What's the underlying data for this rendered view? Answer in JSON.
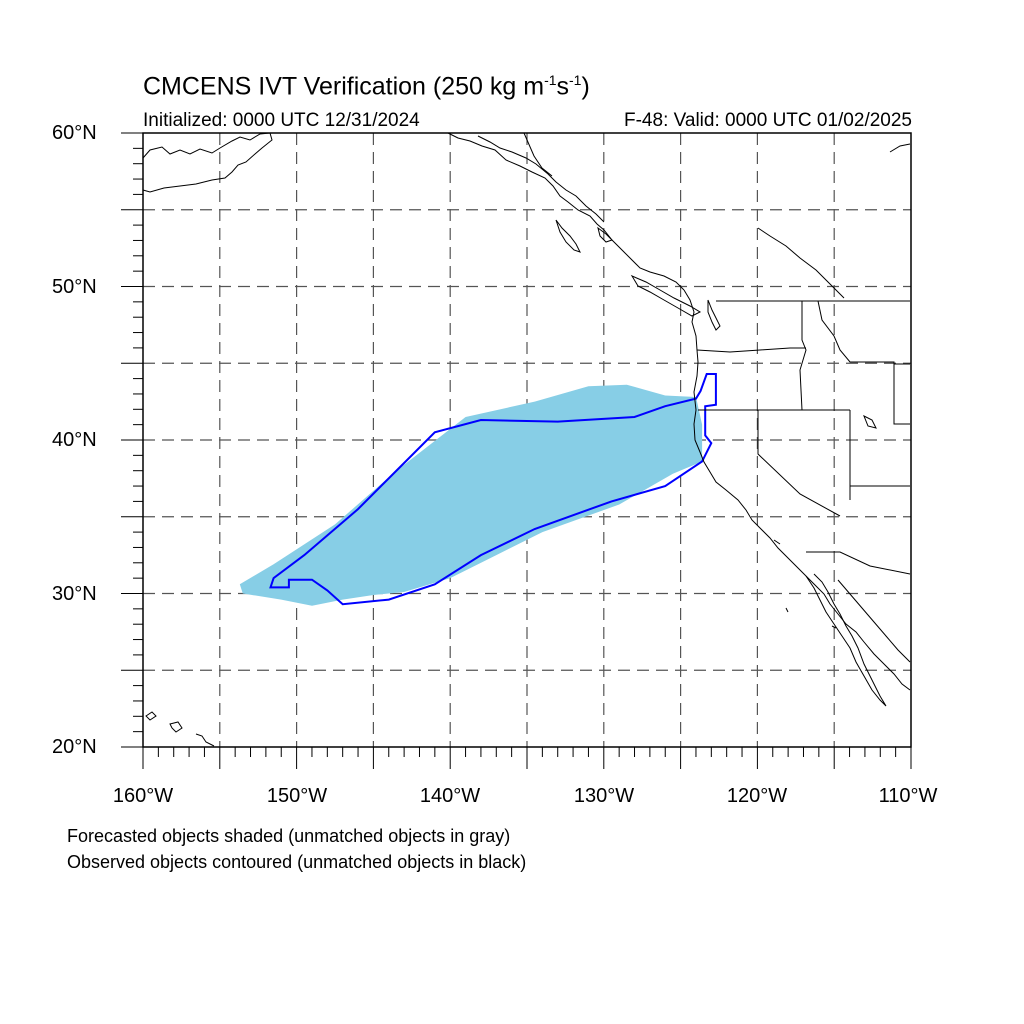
{
  "title": {
    "main": "CMCENS IVT Verification (250 kg m",
    "exp1": "-1",
    "mid": "s",
    "exp2": "-1",
    "end": ")"
  },
  "subtitle": {
    "initialized": "Initialized: 0000 UTC 12/31/2024",
    "valid": "F-48: Valid: 0000 UTC 01/02/2025"
  },
  "axes": {
    "lat_labels": [
      "60°N",
      "50°N",
      "40°N",
      "30°N",
      "20°N"
    ],
    "lon_labels": [
      "160°W",
      "150°W",
      "140°W",
      "130°W",
      "120°W",
      "110°W"
    ],
    "lat_range": [
      20,
      60
    ],
    "lon_range": [
      -160,
      -110
    ],
    "grid_interval_deg": 5,
    "grid_style": "dashed gray"
  },
  "legend_notes": {
    "line1": "Forecasted objects shaded (unmatched objects in gray)",
    "line2": "Observed objects contoured (unmatched objects in black)"
  },
  "colors": {
    "forecast_shade": "#87CEE6",
    "observed_contour": "#0000FF",
    "coastline": "#000000",
    "grid": "#555555"
  },
  "objects": {
    "forecast_matched": {
      "color": "forecast shade",
      "outline_lonlat": [
        [
          -153.7,
          30.6
        ],
        [
          -151.5,
          31.9
        ],
        [
          -147.5,
          34.5
        ],
        [
          -143.5,
          38.0
        ],
        [
          -139.0,
          41.5
        ],
        [
          -134.5,
          42.5
        ],
        [
          -131.0,
          43.5
        ],
        [
          -128.5,
          43.6
        ],
        [
          -126.0,
          42.9
        ],
        [
          -124.0,
          42.8
        ],
        [
          -123.6,
          41.0
        ],
        [
          -123.6,
          38.6
        ],
        [
          -125.5,
          37.8
        ],
        [
          -129.0,
          35.8
        ],
        [
          -134.0,
          34.0
        ],
        [
          -137.0,
          32.5
        ],
        [
          -140.0,
          31.0
        ],
        [
          -143.0,
          30.1
        ],
        [
          -145.0,
          29.9
        ],
        [
          -147.0,
          29.6
        ],
        [
          -149.0,
          29.2
        ],
        [
          -151.0,
          29.6
        ],
        [
          -153.5,
          30.0
        ]
      ]
    },
    "observed_matched": {
      "color": "observed contour",
      "outline_lonlat": [
        [
          -151.7,
          30.4
        ],
        [
          -151.5,
          31.0
        ],
        [
          -149.5,
          32.5
        ],
        [
          -146.0,
          35.5
        ],
        [
          -143.0,
          38.5
        ],
        [
          -141.0,
          40.5
        ],
        [
          -138.0,
          41.3
        ],
        [
          -133.0,
          41.2
        ],
        [
          -128.0,
          41.5
        ],
        [
          -126.0,
          42.2
        ],
        [
          -124.0,
          42.7
        ],
        [
          -123.7,
          43.2
        ],
        [
          -123.3,
          44.3
        ],
        [
          -122.7,
          44.3
        ],
        [
          -122.7,
          42.3
        ],
        [
          -123.4,
          42.2
        ],
        [
          -123.4,
          40.3
        ],
        [
          -123.0,
          39.8
        ],
        [
          -123.6,
          38.6
        ],
        [
          -126.0,
          37.0
        ],
        [
          -129.5,
          36.0
        ],
        [
          -134.5,
          34.2
        ],
        [
          -138.0,
          32.5
        ],
        [
          -141.0,
          30.6
        ],
        [
          -144.0,
          29.6
        ],
        [
          -147.0,
          29.3
        ],
        [
          -148.0,
          30.2
        ],
        [
          -149.0,
          30.9
        ],
        [
          -150.5,
          30.9
        ],
        [
          -150.5,
          30.4
        ]
      ]
    }
  }
}
